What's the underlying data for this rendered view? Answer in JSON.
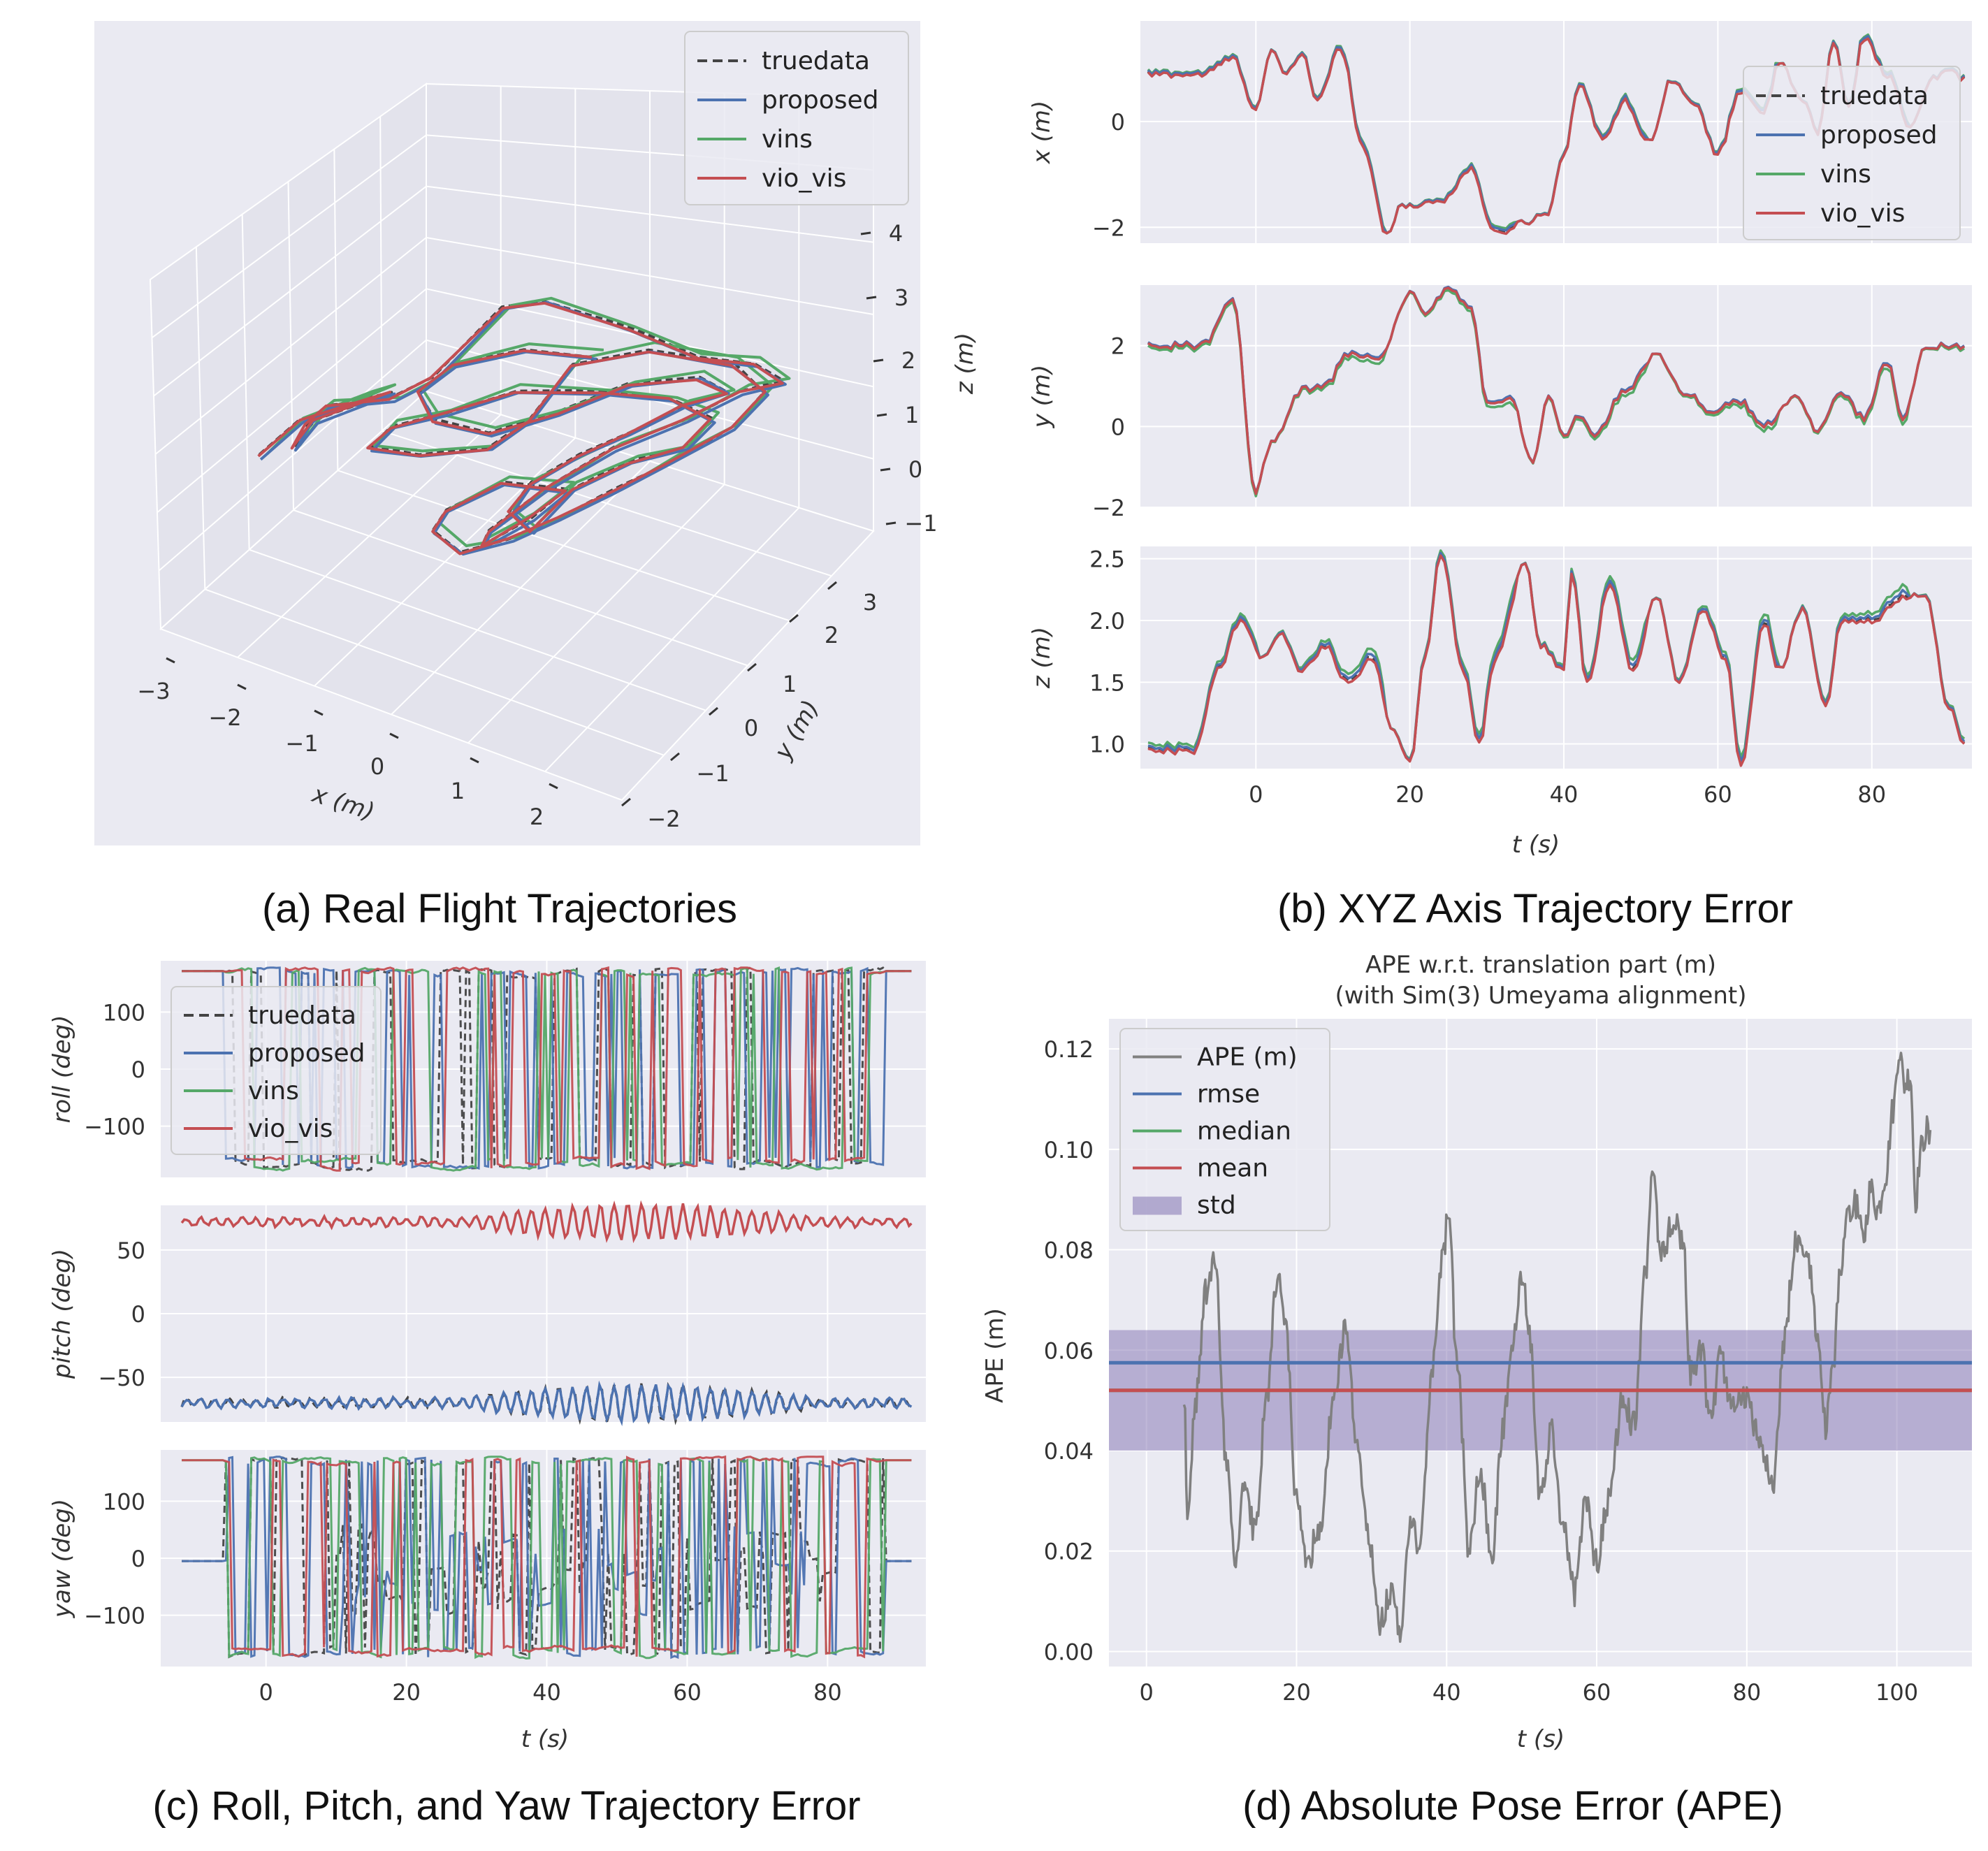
{
  "colors": {
    "bg": "#eaeaf2",
    "grid": "#ffffff",
    "truedata": "#444444",
    "proposed": "#4c72b0",
    "vins": "#55a868",
    "vio_vis": "#c44e52",
    "ape": "#808080",
    "rmse": "#4c72b0",
    "median": "#55a868",
    "mean": "#c44e52",
    "std": "#8172b2"
  },
  "captions": {
    "a": "(a) Real Flight Trajectories",
    "b": "(b) XYZ Axis Trajectory Error",
    "c": "(c) Roll, Pitch, and Yaw Trajectory Error",
    "d": "(d) Absolute Pose Error (APE)"
  },
  "chart_data": [
    {
      "id": "a",
      "type": "line3d",
      "title": "",
      "xlabel": "x (m)",
      "ylabel": "y (m)",
      "zlabel": "z (m)",
      "xticks": [
        "−3",
        "−2",
        "−1",
        "0",
        "1",
        "2"
      ],
      "yticks": [
        "−2",
        "−1",
        "0",
        "1",
        "2",
        "3"
      ],
      "zticks": [
        "−1",
        "0",
        "1",
        "2",
        "3",
        "4"
      ],
      "xlim": [
        -3,
        2.5
      ],
      "ylim": [
        -2,
        3.5
      ],
      "zlim": [
        -1,
        4
      ],
      "legend": [
        "truedata",
        "proposed",
        "vins",
        "vio_vis"
      ],
      "legend_position": "top-right"
    },
    {
      "id": "b",
      "type": "line",
      "xlabel": "t (s)",
      "xlim": [
        -15,
        93
      ],
      "xticks": [
        0,
        20,
        40,
        60,
        80
      ],
      "legend": [
        "truedata",
        "proposed",
        "vins",
        "vio_vis"
      ],
      "legend_position": "upper-right of x subplot",
      "panels": [
        {
          "ylabel": "x (m)",
          "ylim": [
            -2.3,
            1.9
          ],
          "yticks": [
            -2,
            0
          ],
          "keypoints": [
            [
              -14,
              0.9
            ],
            [
              -7,
              0.9
            ],
            [
              -3,
              1.2
            ],
            [
              0,
              0.25
            ],
            [
              2,
              1.3
            ],
            [
              4,
              0.9
            ],
            [
              6,
              1.3
            ],
            [
              8,
              0.4
            ],
            [
              11,
              1.4
            ],
            [
              14,
              -0.5
            ],
            [
              17,
              -2.1
            ],
            [
              19,
              -1.6
            ],
            [
              24,
              -1.5
            ],
            [
              28,
              -0.9
            ],
            [
              31,
              -2.1
            ],
            [
              35,
              -1.9
            ],
            [
              38,
              -1.7
            ],
            [
              40,
              -0.6
            ],
            [
              42,
              0.7
            ],
            [
              45,
              -0.3
            ],
            [
              48,
              0.4
            ],
            [
              51,
              -0.4
            ],
            [
              54,
              0.8
            ],
            [
              57,
              0.3
            ],
            [
              60,
              -0.6
            ],
            [
              63,
              0.6
            ],
            [
              66,
              0.2
            ],
            [
              68,
              1.1
            ],
            [
              71,
              0.4
            ],
            [
              73,
              -0.2
            ],
            [
              75,
              1.5
            ],
            [
              77,
              0.3
            ],
            [
              79,
              1.6
            ],
            [
              82,
              0.9
            ],
            [
              85,
              -0.1
            ],
            [
              88,
              0.8
            ],
            [
              90,
              1.0
            ],
            [
              92,
              0.8
            ]
          ],
          "offsets": {
            "truedata": 0,
            "proposed": 0.04,
            "vins": 0.08,
            "vio_vis": -0.03
          }
        },
        {
          "ylabel": "y (m)",
          "ylim": [
            -2.0,
            3.5
          ],
          "yticks": [
            -2,
            0,
            2
          ],
          "keypoints": [
            [
              -14,
              2.0
            ],
            [
              -7,
              2.0
            ],
            [
              -3,
              3.1
            ],
            [
              0,
              -1.6
            ],
            [
              2,
              -0.4
            ],
            [
              6,
              0.9
            ],
            [
              9,
              1.0
            ],
            [
              12,
              1.8
            ],
            [
              16,
              1.7
            ],
            [
              20,
              3.3
            ],
            [
              22,
              2.8
            ],
            [
              25,
              3.4
            ],
            [
              28,
              2.9
            ],
            [
              30,
              0.6
            ],
            [
              33,
              0.7
            ],
            [
              36,
              -0.9
            ],
            [
              38,
              0.8
            ],
            [
              40,
              -0.3
            ],
            [
              42,
              0.3
            ],
            [
              44,
              -0.2
            ],
            [
              48,
              0.9
            ],
            [
              52,
              1.8
            ],
            [
              56,
              0.8
            ],
            [
              59,
              0.4
            ],
            [
              63,
              0.6
            ],
            [
              66,
              0.0
            ],
            [
              70,
              0.7
            ],
            [
              73,
              -0.1
            ],
            [
              76,
              0.8
            ],
            [
              79,
              0.2
            ],
            [
              82,
              1.6
            ],
            [
              84,
              0.2
            ],
            [
              87,
              2.0
            ],
            [
              92,
              2.0
            ]
          ],
          "offsets": {
            "truedata": 0,
            "proposed": 0.05,
            "vins": -0.12,
            "vio_vis": 0.0
          }
        },
        {
          "ylabel": "z (m)",
          "ylim": [
            0.8,
            2.6
          ],
          "yticks": [
            1.0,
            1.5,
            2.0,
            2.5
          ],
          "keypoints": [
            [
              -14,
              0.95
            ],
            [
              -8,
              0.95
            ],
            [
              -5,
              1.6
            ],
            [
              -2,
              2.0
            ],
            [
              1,
              1.7
            ],
            [
              3,
              1.9
            ],
            [
              6,
              1.6
            ],
            [
              9,
              1.8
            ],
            [
              12,
              1.5
            ],
            [
              15,
              1.7
            ],
            [
              18,
              1.1
            ],
            [
              20,
              0.85
            ],
            [
              22,
              1.7
            ],
            [
              24,
              2.55
            ],
            [
              27,
              1.6
            ],
            [
              29,
              1.0
            ],
            [
              31,
              1.7
            ],
            [
              35,
              2.45
            ],
            [
              37,
              1.8
            ],
            [
              40,
              1.6
            ],
            [
              41,
              2.4
            ],
            [
              43,
              1.5
            ],
            [
              46,
              2.3
            ],
            [
              49,
              1.6
            ],
            [
              52,
              2.2
            ],
            [
              55,
              1.5
            ],
            [
              58,
              2.1
            ],
            [
              61,
              1.7
            ],
            [
              63,
              0.85
            ],
            [
              66,
              2.0
            ],
            [
              68,
              1.6
            ],
            [
              71,
              2.1
            ],
            [
              74,
              1.3
            ],
            [
              76,
              2.0
            ],
            [
              80,
              2.0
            ],
            [
              84,
              2.2
            ],
            [
              87,
              2.2
            ],
            [
              90,
              1.3
            ],
            [
              92,
              1.0
            ]
          ],
          "offsets": {
            "truedata": 0,
            "proposed": 0.03,
            "vins": 0.08,
            "vio_vis": -0.02
          }
        }
      ]
    },
    {
      "id": "c",
      "type": "line",
      "xlabel": "t (s)",
      "xlim": [
        -15,
        94
      ],
      "xticks": [
        0,
        20,
        40,
        60,
        80
      ],
      "legend": [
        "truedata",
        "proposed",
        "vins",
        "vio_vis"
      ],
      "legend_position": "upper-left of roll subplot",
      "panels": [
        {
          "ylabel": "roll (deg)",
          "ylim": [
            -190,
            190
          ],
          "yticks": [
            -100,
            0,
            100
          ]
        },
        {
          "ylabel": "pitch (deg)",
          "ylim": [
            -85,
            85
          ],
          "yticks": [
            -50,
            0,
            50
          ]
        },
        {
          "ylabel": "yaw (deg)",
          "ylim": [
            -190,
            190
          ],
          "yticks": [
            -100,
            0,
            100
          ]
        }
      ]
    },
    {
      "id": "d",
      "type": "line",
      "title": "APE w.r.t. translation part (m)",
      "subtitle": "(with Sim(3) Umeyama alignment)",
      "xlabel": "t (s)",
      "ylabel": "APE (m)",
      "xlim": [
        -5,
        110
      ],
      "ylim": [
        -0.003,
        0.126
      ],
      "xticks": [
        0,
        20,
        40,
        60,
        80,
        100
      ],
      "yticks": [
        "0.00",
        "0.02",
        "0.04",
        "0.06",
        "0.08",
        "0.10",
        "0.12"
      ],
      "legend": [
        "APE (m)",
        "rmse",
        "median",
        "mean",
        "std"
      ],
      "legend_position": "upper-left",
      "rmse": 0.0575,
      "median": 0.052,
      "mean": 0.052,
      "std_band": [
        0.04,
        0.064
      ],
      "ape_keypoints": [
        [
          5,
          0.052
        ],
        [
          5.5,
          0.026
        ],
        [
          6.5,
          0.05
        ],
        [
          8,
          0.072
        ],
        [
          9.2,
          0.078
        ],
        [
          10.5,
          0.04
        ],
        [
          12,
          0.018
        ],
        [
          13,
          0.033
        ],
        [
          14.5,
          0.024
        ],
        [
          16,
          0.05
        ],
        [
          17.5,
          0.075
        ],
        [
          18.5,
          0.065
        ],
        [
          20,
          0.03
        ],
        [
          21.5,
          0.018
        ],
        [
          23,
          0.025
        ],
        [
          25,
          0.05
        ],
        [
          26.5,
          0.065
        ],
        [
          28,
          0.042
        ],
        [
          30,
          0.02
        ],
        [
          31,
          0.005
        ],
        [
          32.5,
          0.012
        ],
        [
          34,
          0.004
        ],
        [
          35,
          0.025
        ],
        [
          36.5,
          0.021
        ],
        [
          38,
          0.055
        ],
        [
          39.5,
          0.078
        ],
        [
          40.2,
          0.087
        ],
        [
          41.5,
          0.055
        ],
        [
          43,
          0.02
        ],
        [
          44.5,
          0.036
        ],
        [
          46,
          0.018
        ],
        [
          47.5,
          0.045
        ],
        [
          49,
          0.063
        ],
        [
          50,
          0.076
        ],
        [
          51,
          0.063
        ],
        [
          52.5,
          0.03
        ],
        [
          54,
          0.044
        ],
        [
          55.5,
          0.025
        ],
        [
          57,
          0.012
        ],
        [
          58.5,
          0.03
        ],
        [
          60,
          0.018
        ],
        [
          61.5,
          0.03
        ],
        [
          63.5,
          0.05
        ],
        [
          65,
          0.045
        ],
        [
          66.5,
          0.075
        ],
        [
          67.5,
          0.097
        ],
        [
          68.5,
          0.078
        ],
        [
          70,
          0.085
        ],
        [
          71.5,
          0.083
        ],
        [
          72.5,
          0.055
        ],
        [
          74,
          0.06
        ],
        [
          75,
          0.045
        ],
        [
          76.5,
          0.058
        ],
        [
          78,
          0.05
        ],
        [
          80,
          0.05
        ],
        [
          82,
          0.04
        ],
        [
          83.5,
          0.032
        ],
        [
          85,
          0.062
        ],
        [
          86.5,
          0.082
        ],
        [
          88,
          0.079
        ],
        [
          89.5,
          0.062
        ],
        [
          90.5,
          0.045
        ],
        [
          91.5,
          0.058
        ],
        [
          92.5,
          0.076
        ],
        [
          93.5,
          0.086
        ],
        [
          94.5,
          0.089
        ],
        [
          95.5,
          0.082
        ],
        [
          96.5,
          0.092
        ],
        [
          97.5,
          0.088
        ],
        [
          98.5,
          0.095
        ],
        [
          99.5,
          0.108
        ],
        [
          100.3,
          0.12
        ],
        [
          101,
          0.113
        ],
        [
          101.8,
          0.115
        ],
        [
          102.5,
          0.09
        ],
        [
          103.2,
          0.1
        ],
        [
          104,
          0.104
        ],
        [
          104.5,
          0.101
        ]
      ]
    }
  ]
}
